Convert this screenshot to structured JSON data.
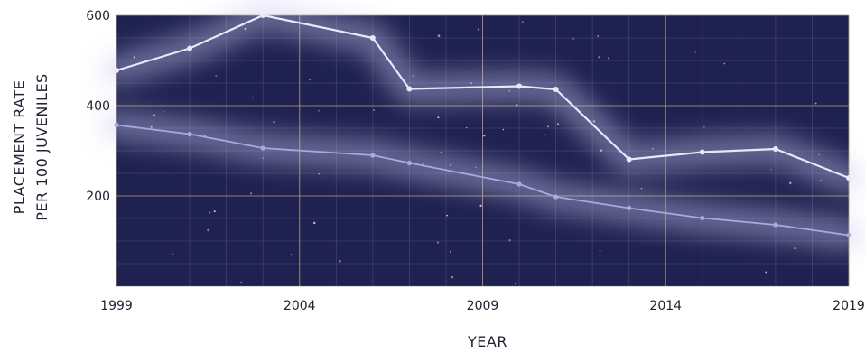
{
  "chart_data": {
    "type": "line",
    "xlabel": "YEAR",
    "ylabel_lines": [
      "PLACEMENT RATE",
      "PER 100 JUVENILES"
    ],
    "xlim": [
      1999,
      2019
    ],
    "ylim": [
      0,
      600
    ],
    "x_ticks": [
      1999,
      2004,
      2009,
      2014,
      2019
    ],
    "y_ticks": [
      200,
      400,
      600
    ],
    "grid": true,
    "colors": {
      "plot_bg": "#1f2150",
      "grid": "#5a5a82",
      "major_grid": "#b59a6e",
      "upper_line": "#e8e8f8",
      "lower_line": "#a7a9e0",
      "glow": "#c8c8f0"
    },
    "series": [
      {
        "x": [
          1999,
          2001,
          2003,
          2006,
          2007,
          2010,
          2011,
          2013,
          2015,
          2017,
          2019
        ],
        "values": [
          478,
          527,
          600,
          550,
          437,
          443,
          436,
          281,
          297,
          304,
          240
        ]
      },
      {
        "x": [
          1999,
          2001,
          2003,
          2006,
          2007,
          2010,
          2011,
          2013,
          2015,
          2017,
          2019
        ],
        "values": [
          357,
          337,
          306,
          290,
          273,
          226,
          198,
          173,
          151,
          136,
          113
        ]
      }
    ]
  }
}
